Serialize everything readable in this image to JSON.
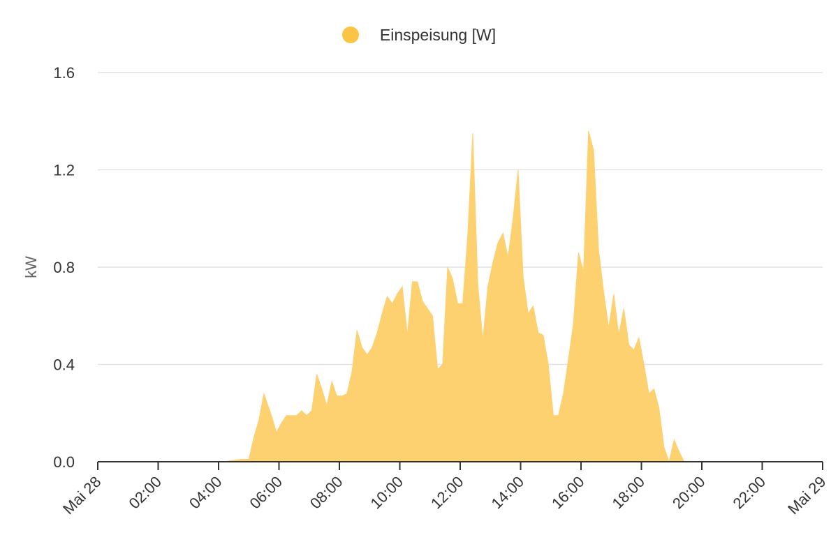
{
  "chart_data": {
    "type": "area",
    "legend": {
      "position": "top-center"
    },
    "ylabel": "kW",
    "ylim": [
      0,
      1.6
    ],
    "yticks": [
      "0.0",
      "0.4",
      "0.8",
      "1.2",
      "1.6"
    ],
    "grid": true,
    "xlim_hours": [
      0,
      24
    ],
    "xtick_labels": [
      "Mai 28",
      "02:00",
      "04:00",
      "06:00",
      "08:00",
      "10:00",
      "12:00",
      "14:00",
      "16:00",
      "18:00",
      "20:00",
      "22:00",
      "Mai 29"
    ],
    "series": [
      {
        "name": "Einspeisung [W]",
        "color": "#fcc444",
        "fill_color": "#fdd070",
        "x": [
          "04:10",
          "04:45",
          "05:00",
          "05:10",
          "05:20",
          "05:30",
          "05:45",
          "05:55",
          "06:05",
          "06:15",
          "06:25",
          "06:35",
          "06:45",
          "06:55",
          "07:05",
          "07:15",
          "07:25",
          "07:35",
          "07:45",
          "07:55",
          "08:05",
          "08:15",
          "08:25",
          "08:35",
          "08:45",
          "08:55",
          "09:05",
          "09:15",
          "09:25",
          "09:35",
          "09:45",
          "09:55",
          "10:05",
          "10:15",
          "10:25",
          "10:35",
          "10:45",
          "10:55",
          "11:05",
          "11:15",
          "11:25",
          "11:35",
          "11:45",
          "11:55",
          "12:05",
          "12:15",
          "12:25",
          "12:35",
          "12:45",
          "12:55",
          "13:05",
          "13:15",
          "13:25",
          "13:35",
          "13:45",
          "13:55",
          "14:05",
          "14:15",
          "14:25",
          "14:35",
          "14:45",
          "14:55",
          "15:05",
          "15:15",
          "15:25",
          "15:35",
          "15:45",
          "15:55",
          "16:05",
          "16:15",
          "16:25",
          "16:35",
          "16:45",
          "16:55",
          "17:05",
          "17:15",
          "17:25",
          "17:35",
          "17:45",
          "17:55",
          "18:05",
          "18:15",
          "18:25",
          "18:35",
          "18:45",
          "18:55",
          "19:05",
          "19:15",
          "19:25",
          "20:00"
        ],
        "values": [
          0,
          0.01,
          0.01,
          0.1,
          0.17,
          0.28,
          0.19,
          0.12,
          0.16,
          0.19,
          0.19,
          0.19,
          0.21,
          0.19,
          0.21,
          0.36,
          0.3,
          0.23,
          0.33,
          0.27,
          0.27,
          0.28,
          0.37,
          0.54,
          0.47,
          0.44,
          0.47,
          0.53,
          0.61,
          0.68,
          0.65,
          0.69,
          0.72,
          0.52,
          0.74,
          0.74,
          0.66,
          0.63,
          0.6,
          0.38,
          0.4,
          0.8,
          0.75,
          0.65,
          0.65,
          0.93,
          1.35,
          0.73,
          0.5,
          0.72,
          0.82,
          0.9,
          0.94,
          0.84,
          1.0,
          1.2,
          0.76,
          0.61,
          0.64,
          0.53,
          0.52,
          0.4,
          0.19,
          0.19,
          0.28,
          0.42,
          0.57,
          0.86,
          0.78,
          1.36,
          1.28,
          0.87,
          0.7,
          0.55,
          0.69,
          0.52,
          0.63,
          0.48,
          0.46,
          0.51,
          0.4,
          0.28,
          0.3,
          0.22,
          0.06,
          0.0,
          0.09,
          0.04,
          0.0,
          0.0
        ]
      }
    ]
  }
}
